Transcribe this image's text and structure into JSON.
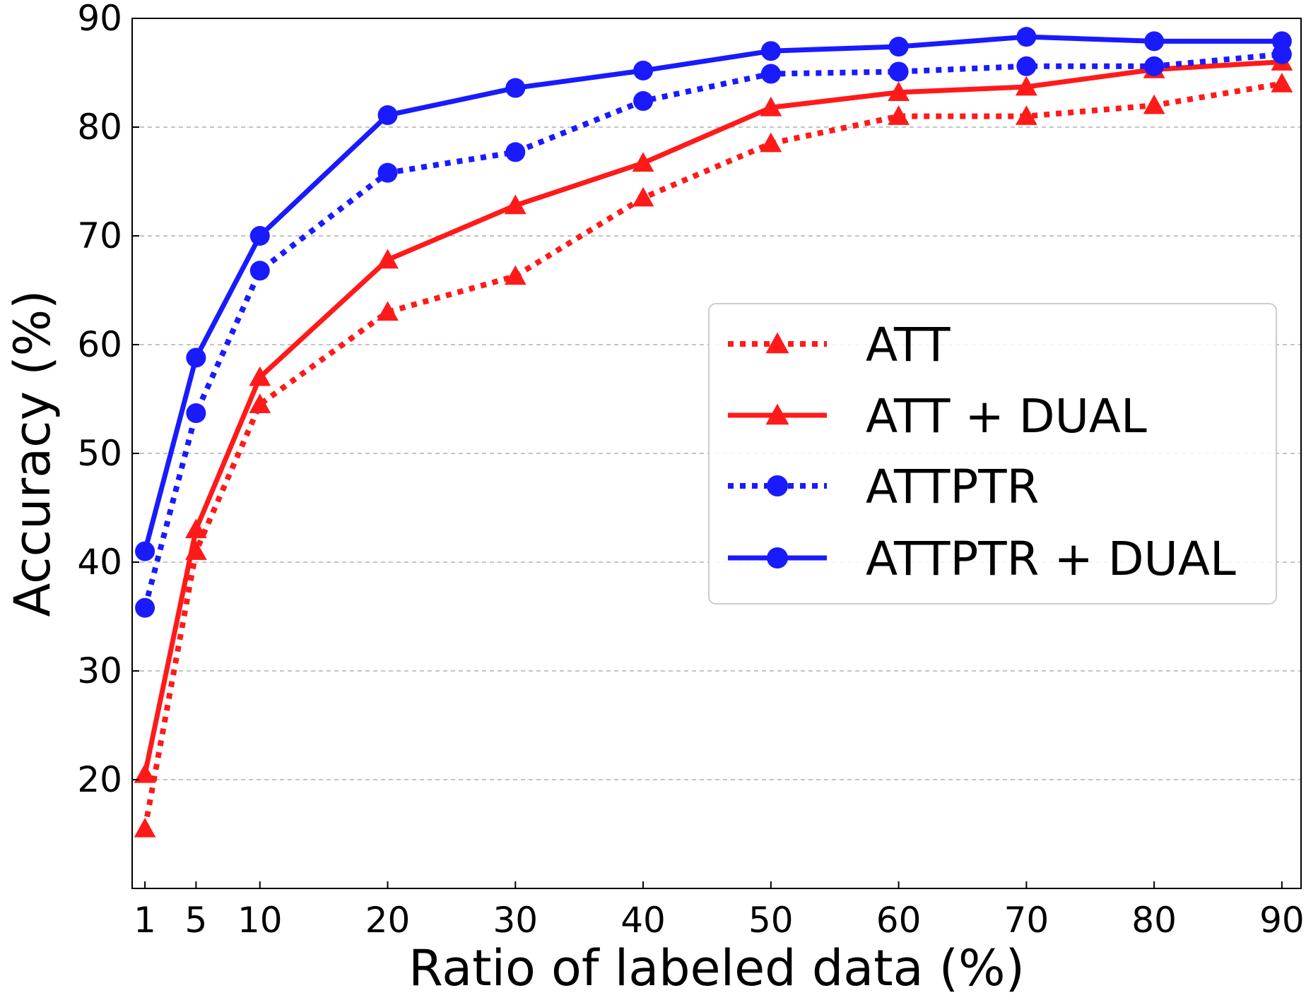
{
  "chart_data": {
    "type": "line",
    "title": "",
    "xlabel": "Ratio of labeled data (%)",
    "ylabel": "Accuracy (%)",
    "x": [
      1,
      5,
      10,
      20,
      30,
      40,
      50,
      60,
      70,
      80,
      90
    ],
    "x_ticks": [
      "1",
      "5",
      "10",
      "20",
      "30",
      "40",
      "50",
      "60",
      "70",
      "80",
      "90"
    ],
    "y_ticks": [
      "20",
      "30",
      "40",
      "50",
      "60",
      "70",
      "80",
      "90"
    ],
    "xlim": [
      0,
      91.5
    ],
    "ylim": [
      10,
      90
    ],
    "grid": "horizontal dashed",
    "legend_position": "center-right",
    "series": [
      {
        "name": "ATT",
        "color": "#ff1a1a",
        "line_style": "dotted",
        "marker": "triangle",
        "values": [
          15.5,
          41,
          54.5,
          63,
          66.3,
          73.5,
          78.5,
          81,
          81,
          82,
          84
        ]
      },
      {
        "name": "ATT + DUAL",
        "color": "#ff1a1a",
        "line_style": "solid",
        "marker": "triangle",
        "values": [
          20.5,
          43,
          57,
          67.8,
          72.8,
          76.7,
          81.8,
          83.2,
          83.7,
          85.3,
          86
        ]
      },
      {
        "name": "ATTPTR",
        "color": "#1a1aff",
        "line_style": "dotted",
        "marker": "circle",
        "values": [
          35.8,
          53.7,
          66.8,
          75.8,
          77.7,
          82.4,
          84.9,
          85.1,
          85.6,
          85.6,
          86.7
        ]
      },
      {
        "name": "ATTPTR + DUAL",
        "color": "#1a1aff",
        "line_style": "solid",
        "marker": "circle",
        "values": [
          41,
          58.8,
          70,
          81.1,
          83.6,
          85.2,
          87,
          87.4,
          88.3,
          87.9,
          87.9
        ]
      }
    ]
  }
}
